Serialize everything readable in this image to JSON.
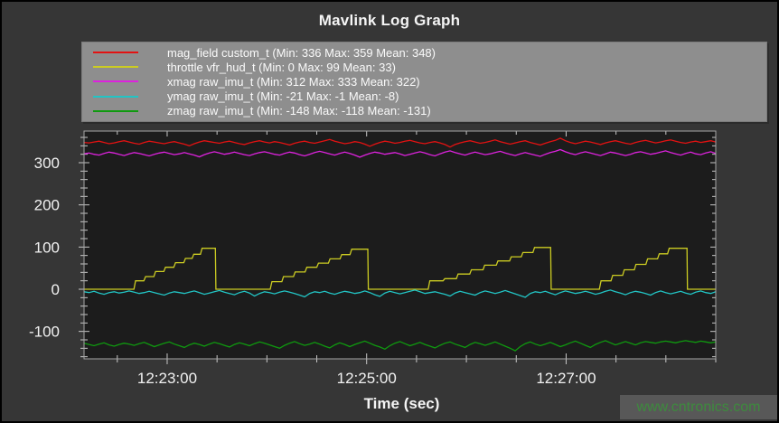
{
  "watermark": {
    "text": "www.cntronics.com",
    "text_color": "#3d8b3d",
    "bg_color": "#585858"
  },
  "chart_data": {
    "type": "line",
    "title": "Mavlink Log Graph",
    "xlabel": "Time (sec)",
    "ylabel": "",
    "legend_position": "top",
    "grid": false,
    "colors": {
      "figure_bg": "#363636",
      "plot_bg": "#1c1c1c",
      "axis": "#a6a6a6",
      "tick": "#c8c8c8",
      "text": "#f2f2f2",
      "legend_bg": "#8e8e8e"
    },
    "x_domain_sec": [
      0,
      380
    ],
    "x_ticks_major": [
      {
        "t": 50,
        "label": "12:23:00"
      },
      {
        "t": 170,
        "label": "12:25:00"
      },
      {
        "t": 290,
        "label": "12:27:00"
      }
    ],
    "x_minor": {
      "start": 20,
      "end": 380,
      "step": 30
    },
    "ylim": [
      -165,
      375
    ],
    "y_ticks_major": [
      -100,
      0,
      100,
      200,
      300
    ],
    "y_minor": {
      "start": -160,
      "end": 360,
      "step": 20
    },
    "series": [
      {
        "name": "mag_field custom_t",
        "legend": "mag_field custom_t (Min: 336 Max: 359 Mean: 348)",
        "color": "#e31212",
        "min": 336,
        "max": 359,
        "mean": 348,
        "values": [
          348,
          347,
          349,
          351,
          348,
          345,
          347,
          350,
          352,
          349,
          346,
          344,
          348,
          351,
          349,
          347,
          345,
          348,
          350,
          347,
          344,
          340,
          345,
          349,
          352,
          350,
          348,
          346,
          349,
          351,
          348,
          345,
          343,
          347,
          350,
          352,
          349,
          347,
          350,
          348,
          345,
          342,
          346,
          349,
          351,
          348,
          346,
          349,
          352,
          355,
          351,
          348,
          345,
          347,
          350,
          348,
          344,
          339,
          344,
          348,
          351,
          349,
          346,
          348,
          351,
          353,
          350,
          347,
          345,
          348,
          350,
          347,
          343,
          337,
          343,
          347,
          350,
          352,
          349,
          346,
          348,
          351,
          354,
          350,
          347,
          344,
          347,
          350,
          352,
          348,
          345,
          342,
          346,
          350,
          353,
          358,
          352,
          348,
          345,
          348,
          351,
          349,
          346,
          343,
          347,
          350,
          352,
          349,
          346,
          344,
          348,
          351,
          353,
          350,
          347,
          349,
          352,
          354,
          351,
          348,
          346,
          349,
          351,
          348,
          350,
          352,
          349
        ]
      },
      {
        "name": "throttle vfr_hud_t",
        "legend": "throttle vfr_hud_t (Min: 0 Max: 99 Mean: 33)",
        "color": "#cccc22",
        "min": 0,
        "max": 99,
        "mean": 33,
        "points": [
          [
            0,
            0
          ],
          [
            30,
            0
          ],
          [
            31,
            20
          ],
          [
            36,
            20
          ],
          [
            37,
            30
          ],
          [
            42,
            30
          ],
          [
            43,
            42
          ],
          [
            48,
            42
          ],
          [
            49,
            52
          ],
          [
            54,
            52
          ],
          [
            55,
            63
          ],
          [
            60,
            63
          ],
          [
            61,
            73
          ],
          [
            65,
            73
          ],
          [
            66,
            83
          ],
          [
            70,
            83
          ],
          [
            71,
            97
          ],
          [
            79,
            97
          ],
          [
            79.3,
            0
          ],
          [
            112,
            0
          ],
          [
            113,
            18
          ],
          [
            119,
            18
          ],
          [
            120,
            30
          ],
          [
            126,
            30
          ],
          [
            127,
            41
          ],
          [
            133,
            41
          ],
          [
            134,
            52
          ],
          [
            140,
            52
          ],
          [
            141,
            62
          ],
          [
            147,
            62
          ],
          [
            148,
            72
          ],
          [
            154,
            72
          ],
          [
            155,
            82
          ],
          [
            160,
            82
          ],
          [
            161,
            95
          ],
          [
            170.7,
            95
          ],
          [
            171,
            0
          ],
          [
            207,
            0
          ],
          [
            208,
            20
          ],
          [
            216,
            20
          ],
          [
            217,
            25
          ],
          [
            224,
            25
          ],
          [
            225,
            36
          ],
          [
            232,
            36
          ],
          [
            233,
            46
          ],
          [
            240,
            46
          ],
          [
            241,
            57
          ],
          [
            248,
            57
          ],
          [
            249,
            67
          ],
          [
            256,
            67
          ],
          [
            257,
            77
          ],
          [
            263,
            77
          ],
          [
            264,
            87
          ],
          [
            270,
            87
          ],
          [
            271,
            99
          ],
          [
            280.7,
            99
          ],
          [
            281,
            0
          ],
          [
            310,
            0
          ],
          [
            311,
            20
          ],
          [
            317,
            20
          ],
          [
            318,
            33
          ],
          [
            324,
            33
          ],
          [
            325,
            46
          ],
          [
            331,
            46
          ],
          [
            332,
            59
          ],
          [
            338,
            59
          ],
          [
            339,
            72
          ],
          [
            345,
            72
          ],
          [
            346,
            84
          ],
          [
            351,
            84
          ],
          [
            352,
            97
          ],
          [
            362.7,
            97
          ],
          [
            363,
            0
          ],
          [
            380,
            0
          ]
        ]
      },
      {
        "name": "xmag raw_imu_t",
        "legend": "xmag raw_imu_t (Min: 312 Max: 333 Mean: 322)",
        "color": "#dd22dd",
        "min": 312,
        "max": 333,
        "mean": 322,
        "values": [
          321,
          323,
          320,
          318,
          322,
          325,
          323,
          320,
          317,
          321,
          324,
          322,
          319,
          316,
          320,
          323,
          325,
          322,
          319,
          321,
          324,
          321,
          318,
          314,
          319,
          323,
          326,
          323,
          320,
          322,
          325,
          322,
          319,
          317,
          321,
          324,
          326,
          323,
          320,
          318,
          322,
          325,
          323,
          319,
          316,
          320,
          324,
          327,
          324,
          321,
          318,
          322,
          325,
          322,
          318,
          313,
          318,
          322,
          325,
          323,
          320,
          322,
          324,
          321,
          317,
          320,
          323,
          326,
          323,
          319,
          316,
          321,
          325,
          328,
          324,
          321,
          318,
          322,
          325,
          322,
          319,
          321,
          324,
          327,
          323,
          320,
          317,
          321,
          324,
          321,
          318,
          315,
          320,
          324,
          327,
          331,
          326,
          322,
          319,
          323,
          326,
          323,
          320,
          317,
          321,
          325,
          323,
          320,
          317,
          320,
          324,
          326,
          323,
          320,
          322,
          325,
          328,
          324,
          321,
          318,
          322,
          325,
          321,
          319,
          323,
          326,
          322
        ]
      },
      {
        "name": "ymag raw_imu_t",
        "legend": "ymag raw_imu_t (Min: -21 Max: -1 Mean: -8)",
        "color": "#22c4c4",
        "min": -21,
        "max": -1,
        "mean": -8,
        "values": [
          -6,
          -8,
          -5,
          -9,
          -12,
          -8,
          -6,
          -9,
          -7,
          -4,
          -7,
          -10,
          -8,
          -5,
          -8,
          -11,
          -14,
          -9,
          -6,
          -8,
          -10,
          -7,
          -4,
          -8,
          -12,
          -9,
          -6,
          -3,
          -7,
          -10,
          -13,
          -8,
          -5,
          -9,
          -16,
          -10,
          -6,
          -8,
          -11,
          -7,
          -4,
          -7,
          -10,
          -14,
          -18,
          -10,
          -6,
          -8,
          -5,
          -9,
          -12,
          -8,
          -5,
          -7,
          -10,
          -8,
          -4,
          -8,
          -13,
          -17,
          -9,
          -5,
          -8,
          -11,
          -8,
          -5,
          -2,
          -6,
          -10,
          -8,
          -6,
          -9,
          -12,
          -16,
          -9,
          -5,
          -8,
          -11,
          -14,
          -8,
          -4,
          -7,
          -10,
          -7,
          -3,
          -7,
          -11,
          -15,
          -19,
          -10,
          -6,
          -8,
          -5,
          -9,
          -13,
          -8,
          -4,
          -7,
          -10,
          -8,
          -5,
          -8,
          -12,
          -9,
          -5,
          -2,
          -6,
          -9,
          -13,
          -8,
          -5,
          -7,
          -10,
          -14,
          -8,
          -4,
          -8,
          -11,
          -8,
          -5,
          -9,
          -12,
          -7,
          -4,
          -8,
          -10,
          -6
        ]
      },
      {
        "name": "zmag raw_imu_t",
        "legend": "zmag raw_imu_t (Min: -148 Max: -118 Mean: -131)",
        "color": "#0f9a0f",
        "min": -148,
        "max": -118,
        "mean": -131,
        "values": [
          -128,
          -131,
          -134,
          -130,
          -127,
          -132,
          -135,
          -131,
          -128,
          -130,
          -133,
          -129,
          -126,
          -131,
          -136,
          -132,
          -128,
          -125,
          -130,
          -134,
          -138,
          -132,
          -128,
          -131,
          -135,
          -130,
          -126,
          -129,
          -133,
          -137,
          -131,
          -127,
          -130,
          -134,
          -129,
          -125,
          -128,
          -132,
          -136,
          -140,
          -133,
          -128,
          -124,
          -129,
          -133,
          -130,
          -126,
          -130,
          -135,
          -139,
          -132,
          -127,
          -131,
          -136,
          -131,
          -127,
          -123,
          -128,
          -133,
          -137,
          -142,
          -134,
          -128,
          -124,
          -129,
          -134,
          -130,
          -126,
          -131,
          -135,
          -139,
          -133,
          -128,
          -125,
          -130,
          -134,
          -138,
          -131,
          -126,
          -129,
          -133,
          -129,
          -125,
          -130,
          -135,
          -140,
          -146,
          -136,
          -129,
          -125,
          -130,
          -134,
          -130,
          -126,
          -131,
          -136,
          -132,
          -127,
          -123,
          -128,
          -133,
          -138,
          -131,
          -126,
          -122,
          -127,
          -132,
          -128,
          -124,
          -128,
          -132,
          -127,
          -124,
          -126,
          -128,
          -125,
          -123,
          -125,
          -127,
          -124,
          -122,
          -124,
          -126,
          -123,
          -125,
          -127,
          -125
        ]
      }
    ]
  }
}
